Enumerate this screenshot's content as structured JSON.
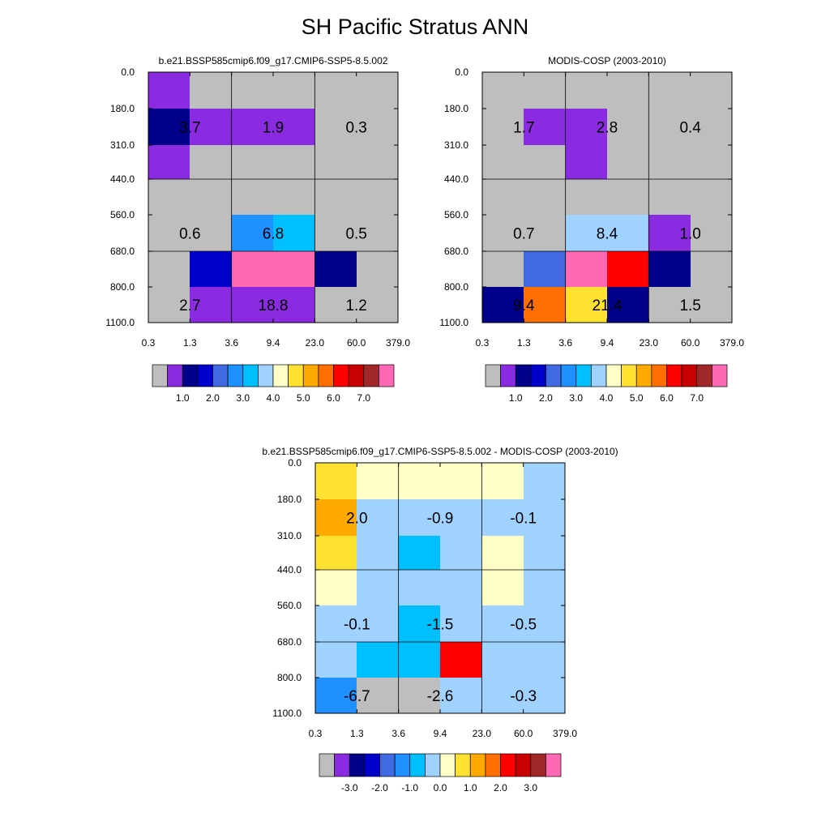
{
  "title": "SH Pacific Stratus ANN",
  "chart_data": [
    {
      "id": "model",
      "type": "heatmap",
      "title": "b.e21.BSSP585cmip6.f09_g17.CMIP6-SSP5-8.5.002",
      "x_tick_labels": [
        "0.3",
        "1.3",
        "3.6",
        "9.4",
        "23.0",
        "60.0",
        "379.0"
      ],
      "y_tick_labels": [
        "0.0",
        "180.0",
        "310.0",
        "440.0",
        "560.0",
        "680.0",
        "800.0",
        "1100.0"
      ],
      "cell_color_index": [
        [
          1,
          0,
          0,
          0,
          0,
          0
        ],
        [
          2,
          1,
          1,
          1,
          0,
          0
        ],
        [
          1,
          0,
          0,
          0,
          0,
          0
        ],
        [
          0,
          0,
          0,
          0,
          0,
          0
        ],
        [
          0,
          0,
          5,
          6,
          0,
          0
        ],
        [
          0,
          3,
          15,
          15,
          2,
          0
        ],
        [
          0,
          1,
          1,
          1,
          0,
          0
        ]
      ],
      "block_labels": [
        {
          "text": "3.7",
          "col": 1,
          "row": 1
        },
        {
          "text": "1.9",
          "col": 3,
          "row": 1
        },
        {
          "text": "0.3",
          "col": 5,
          "row": 1
        },
        {
          "text": "0.6",
          "col": 1,
          "row": 4
        },
        {
          "text": "6.8",
          "col": 3,
          "row": 4
        },
        {
          "text": "0.5",
          "col": 5,
          "row": 4
        },
        {
          "text": "2.7",
          "col": 1,
          "row": 6
        },
        {
          "text": "18.8",
          "col": 3,
          "row": 6
        },
        {
          "text": "1.2",
          "col": 5,
          "row": 6
        }
      ],
      "colorbar": {
        "colors": [
          "#bebebe",
          "#8a2be2",
          "#00008b",
          "#0000cd",
          "#4169e1",
          "#1e90ff",
          "#00bfff",
          "#a0d2ff",
          "#ffffc8",
          "#ffe132",
          "#ffaa00",
          "#ff6e00",
          "#ff0000",
          "#c80000",
          "#a02828",
          "#ff69b4"
        ],
        "labels": [
          "1.0",
          "2.0",
          "3.0",
          "4.0",
          "5.0",
          "6.0",
          "7.0"
        ]
      }
    },
    {
      "id": "obs",
      "type": "heatmap",
      "title": "MODIS-COSP (2003-2010)",
      "x_tick_labels": [
        "0.3",
        "1.3",
        "3.6",
        "9.4",
        "23.0",
        "60.0",
        "379.0"
      ],
      "y_tick_labels": [
        "0.0",
        "180.0",
        "310.0",
        "440.0",
        "560.0",
        "680.0",
        "800.0",
        "1100.0"
      ],
      "cell_color_index": [
        [
          0,
          0,
          0,
          0,
          0,
          0
        ],
        [
          0,
          1,
          1,
          0,
          0,
          0
        ],
        [
          0,
          0,
          1,
          0,
          0,
          0
        ],
        [
          0,
          0,
          0,
          0,
          0,
          0
        ],
        [
          0,
          0,
          7,
          7,
          1,
          0
        ],
        [
          0,
          4,
          15,
          12,
          2,
          0
        ],
        [
          2,
          11,
          9,
          2,
          0,
          0
        ]
      ],
      "block_labels": [
        {
          "text": "1.7",
          "col": 1,
          "row": 1
        },
        {
          "text": "2.8",
          "col": 3,
          "row": 1
        },
        {
          "text": "0.4",
          "col": 5,
          "row": 1
        },
        {
          "text": "0.7",
          "col": 1,
          "row": 4
        },
        {
          "text": "8.4",
          "col": 3,
          "row": 4
        },
        {
          "text": "1.0",
          "col": 5,
          "row": 4
        },
        {
          "text": "9.4",
          "col": 1,
          "row": 6
        },
        {
          "text": "21.4",
          "col": 3,
          "row": 6
        },
        {
          "text": "1.5",
          "col": 5,
          "row": 6
        }
      ],
      "colorbar": {
        "colors": [
          "#bebebe",
          "#8a2be2",
          "#00008b",
          "#0000cd",
          "#4169e1",
          "#1e90ff",
          "#00bfff",
          "#a0d2ff",
          "#ffffc8",
          "#ffe132",
          "#ffaa00",
          "#ff6e00",
          "#ff0000",
          "#c80000",
          "#a02828",
          "#ff69b4"
        ],
        "labels": [
          "1.0",
          "2.0",
          "3.0",
          "4.0",
          "5.0",
          "6.0",
          "7.0"
        ]
      }
    },
    {
      "id": "diff",
      "type": "heatmap",
      "title": "b.e21.BSSP585cmip6.f09_g17.CMIP6-SSP5-8.5.002 - MODIS-COSP (2003-2010)",
      "x_tick_labels": [
        "0.3",
        "1.3",
        "3.6",
        "9.4",
        "23.0",
        "60.0",
        "379.0"
      ],
      "y_tick_labels": [
        "0.0",
        "180.0",
        "310.0",
        "440.0",
        "560.0",
        "680.0",
        "800.0",
        "1100.0"
      ],
      "cell_color_index": [
        [
          9,
          8,
          8,
          8,
          8,
          7
        ],
        [
          10,
          7,
          7,
          7,
          7,
          7
        ],
        [
          9,
          7,
          6,
          7,
          8,
          7
        ],
        [
          8,
          7,
          7,
          7,
          8,
          7
        ],
        [
          7,
          7,
          6,
          7,
          7,
          7
        ],
        [
          7,
          6,
          6,
          12,
          7,
          7
        ],
        [
          5,
          0,
          0,
          7,
          7,
          7
        ]
      ],
      "block_labels": [
        {
          "text": "2.0",
          "col": 1,
          "row": 1
        },
        {
          "text": "-0.9",
          "col": 3,
          "row": 1
        },
        {
          "text": "-0.1",
          "col": 5,
          "row": 1
        },
        {
          "text": "-0.1",
          "col": 1,
          "row": 4
        },
        {
          "text": "-1.5",
          "col": 3,
          "row": 4
        },
        {
          "text": "-0.5",
          "col": 5,
          "row": 4
        },
        {
          "text": "-6.7",
          "col": 1,
          "row": 6
        },
        {
          "text": "-2.6",
          "col": 3,
          "row": 6
        },
        {
          "text": "-0.3",
          "col": 5,
          "row": 6
        }
      ],
      "colorbar": {
        "colors": [
          "#bebebe",
          "#8a2be2",
          "#00008b",
          "#0000cd",
          "#4169e1",
          "#1e90ff",
          "#00bfff",
          "#a0d2ff",
          "#ffffc8",
          "#ffe132",
          "#ffaa00",
          "#ff6e00",
          "#ff0000",
          "#c80000",
          "#a02828",
          "#ff69b4"
        ],
        "labels": [
          "-3.0",
          "-2.0",
          "-1.0",
          "0.0",
          "1.0",
          "2.0",
          "3.0"
        ]
      }
    }
  ]
}
